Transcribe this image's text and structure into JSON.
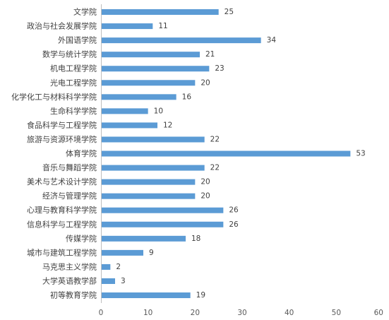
{
  "chart_data": {
    "type": "bar",
    "orientation": "horizontal",
    "categories": [
      "文学院",
      "政治与社会发展学院",
      "外国语学院",
      "数学与统计学院",
      "机电工程学院",
      "光电工程学院",
      "化学化工与材料科学学院",
      "生命科学学院",
      "食品科学与工程学院",
      "旅游与资源环境学院",
      "体育学院",
      "音乐与舞蹈学院",
      "美术与艺术设计学院",
      "经济与管理学院",
      "心理与教育科学学院",
      "信息科学与工程学院",
      "传媒学院",
      "城市与建筑工程学院",
      "马克思主义学院",
      "大学英语教学部",
      "初等教育学院"
    ],
    "values": [
      25,
      11,
      34,
      21,
      23,
      20,
      16,
      10,
      12,
      22,
      53,
      22,
      20,
      20,
      26,
      26,
      18,
      9,
      2,
      3,
      19
    ],
    "xlim": [
      0,
      60
    ],
    "xticks": [
      0,
      10,
      20,
      30,
      40,
      50,
      60
    ],
    "bar_color": "#5b9bd5",
    "grid": false,
    "legend": "none",
    "data_labels": true
  }
}
